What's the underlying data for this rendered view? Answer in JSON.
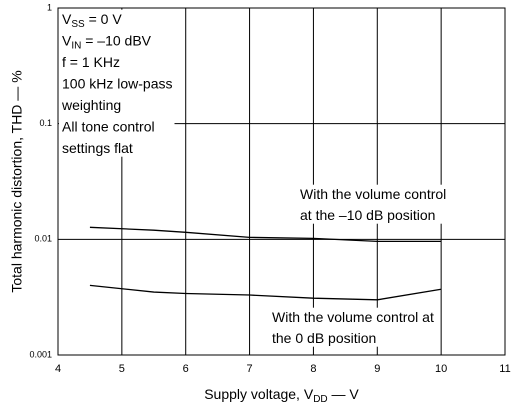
{
  "chart_data": {
    "type": "line",
    "y_log": true,
    "grid": true,
    "x_label": [
      "Supply voltage, V",
      "DD",
      " — V"
    ],
    "y_label": "Total harmonic distortion, THD — %",
    "annotation": [
      [
        "V",
        "SS",
        " = 0 V"
      ],
      [
        "V",
        "IN",
        " = –10 dBV"
      ],
      [
        "f = 1 KHz"
      ],
      [
        "100 kHz low-pass"
      ],
      [
        "weighting"
      ],
      [
        "All tone control"
      ],
      [
        "settings flat"
      ]
    ],
    "x": [
      4.5,
      5.5,
      6,
      7,
      8,
      9,
      10
    ],
    "series": [
      {
        "name": [
          "With the volume control",
          "at the –10 dB position"
        ],
        "color": "#000000",
        "values": [
          0.0127,
          0.012,
          0.0115,
          0.0104,
          0.0102,
          0.0096,
          0.0096
        ]
      },
      {
        "name": [
          "With the volume control at",
          "the 0 dB position"
        ],
        "color": "#000000",
        "values": [
          0.004,
          0.0035,
          0.0034,
          0.0033,
          0.0031,
          0.003,
          0.0037
        ]
      }
    ],
    "xlim": [
      4,
      11
    ],
    "xticks": [
      4,
      5,
      6,
      7,
      8,
      9,
      10,
      11
    ],
    "ylim": [
      0.001,
      1
    ],
    "yticks": [
      0.001,
      0.01,
      0.1,
      1
    ]
  }
}
